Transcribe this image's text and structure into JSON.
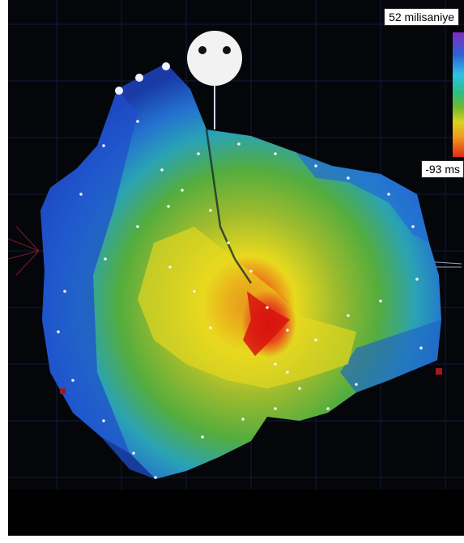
{
  "scale": {
    "max_label": "52 milisaniye",
    "min_label": "-93 ms"
  },
  "colors": {
    "background": "#05060a",
    "grid": "#1b2a6a",
    "early": "#e11f1a",
    "mid": "#e6d61d",
    "late": "#1f3fbf"
  }
}
